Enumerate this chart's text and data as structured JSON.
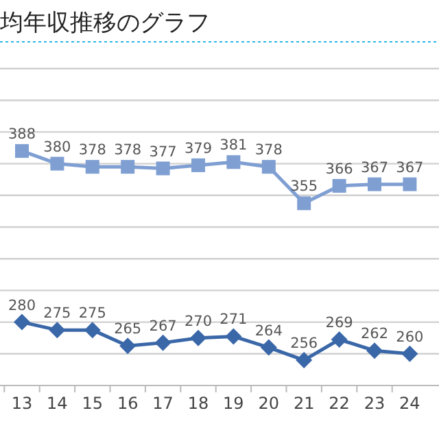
{
  "chart_data": {
    "type": "line",
    "title": "均年収推移のグラフ",
    "categories": [
      "13",
      "14",
      "15",
      "16",
      "17",
      "18",
      "19",
      "20",
      "21",
      "22",
      "23",
      "24"
    ],
    "series": [
      {
        "color": "#7f9fd3",
        "marker": "square",
        "values": [
          388,
          380,
          378,
          378,
          377,
          379,
          381,
          378,
          355,
          366,
          367,
          367
        ]
      },
      {
        "color": "#3a67a8",
        "marker": "diamond",
        "values": [
          280,
          275,
          275,
          265,
          267,
          270,
          271,
          264,
          256,
          269,
          262,
          260
        ]
      }
    ],
    "ylim": [
      240,
      440
    ],
    "yticks": [
      {
        "value": 240,
        "label": null
      },
      {
        "value": 260,
        "label": null
      },
      {
        "value": 280,
        "label": null
      },
      {
        "value": 300,
        "label": null
      },
      {
        "value": 320,
        "label": null
      },
      {
        "value": 340,
        "label": null
      },
      {
        "value": 360,
        "label": null
      },
      {
        "value": 380,
        "label": null
      },
      {
        "value": 400,
        "label": null
      },
      {
        "value": 420,
        "label": null
      },
      {
        "value": 440,
        "label": null
      }
    ],
    "grid": "y",
    "tick_labels": "x",
    "data_labels": true
  }
}
